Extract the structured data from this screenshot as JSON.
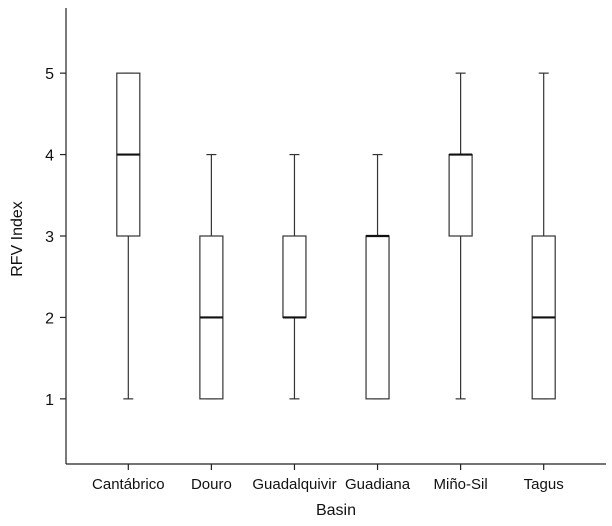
{
  "chart_data": {
    "type": "boxplot",
    "title": "",
    "xlabel": "Basin",
    "ylabel": "RFV Index",
    "ylim": [
      0.2,
      5.8
    ],
    "yticks": [
      1,
      2,
      3,
      4,
      5
    ],
    "grid": false,
    "categories": [
      "Cantábrico",
      "Douro",
      "Guadalquivir",
      "Guadiana",
      "Miño-Sil",
      "Tagus"
    ],
    "boxes": [
      {
        "category": "Cantábrico",
        "min": 1,
        "q1": 3,
        "median": 4,
        "q3": 5,
        "max": 5
      },
      {
        "category": "Douro",
        "min": 1,
        "q1": 1,
        "median": 2,
        "q3": 3,
        "max": 4
      },
      {
        "category": "Guadalquivir",
        "min": 1,
        "q1": 2,
        "median": 2,
        "q3": 3,
        "max": 4
      },
      {
        "category": "Guadiana",
        "min": 1,
        "q1": 1,
        "median": 3,
        "q3": 3,
        "max": 4
      },
      {
        "category": "Miño-Sil",
        "min": 1,
        "q1": 3,
        "median": 4,
        "q3": 4,
        "max": 5
      },
      {
        "category": "Tagus",
        "min": 1,
        "q1": 1,
        "median": 2,
        "q3": 3,
        "max": 5
      }
    ]
  }
}
